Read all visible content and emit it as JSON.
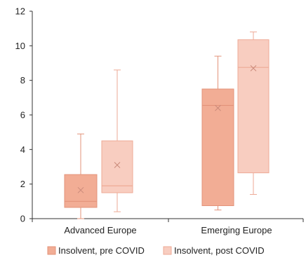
{
  "chart_data": {
    "type": "box",
    "title": "",
    "xlabel": "",
    "ylabel": "",
    "ylim": [
      0,
      12
    ],
    "yticks": [
      0,
      2,
      4,
      6,
      8,
      10,
      12
    ],
    "grid": false,
    "legend_position": "bottom",
    "categories": [
      "Advanced Europe",
      "Emerging Europe"
    ],
    "series": [
      {
        "name": "Insolvent, pre COVID",
        "fill": "#f2ad95",
        "stroke": "#e3937a",
        "boxes": [
          {
            "min": 0.0,
            "q1": 0.65,
            "median": 1.0,
            "q3": 2.55,
            "max": 4.9,
            "mean": 1.65
          },
          {
            "min": 0.5,
            "q1": 0.75,
            "median": 6.55,
            "q3": 7.5,
            "max": 9.4,
            "mean": 6.4
          }
        ]
      },
      {
        "name": "Insolvent, post COVID",
        "fill": "#f8cdc0",
        "stroke": "#eeaa96",
        "boxes": [
          {
            "min": 0.4,
            "q1": 1.5,
            "median": 1.9,
            "q3": 4.5,
            "max": 8.6,
            "mean": 3.1
          },
          {
            "min": 1.4,
            "q1": 2.65,
            "median": 8.75,
            "q3": 10.35,
            "max": 10.8,
            "mean": 8.7
          }
        ]
      }
    ]
  }
}
